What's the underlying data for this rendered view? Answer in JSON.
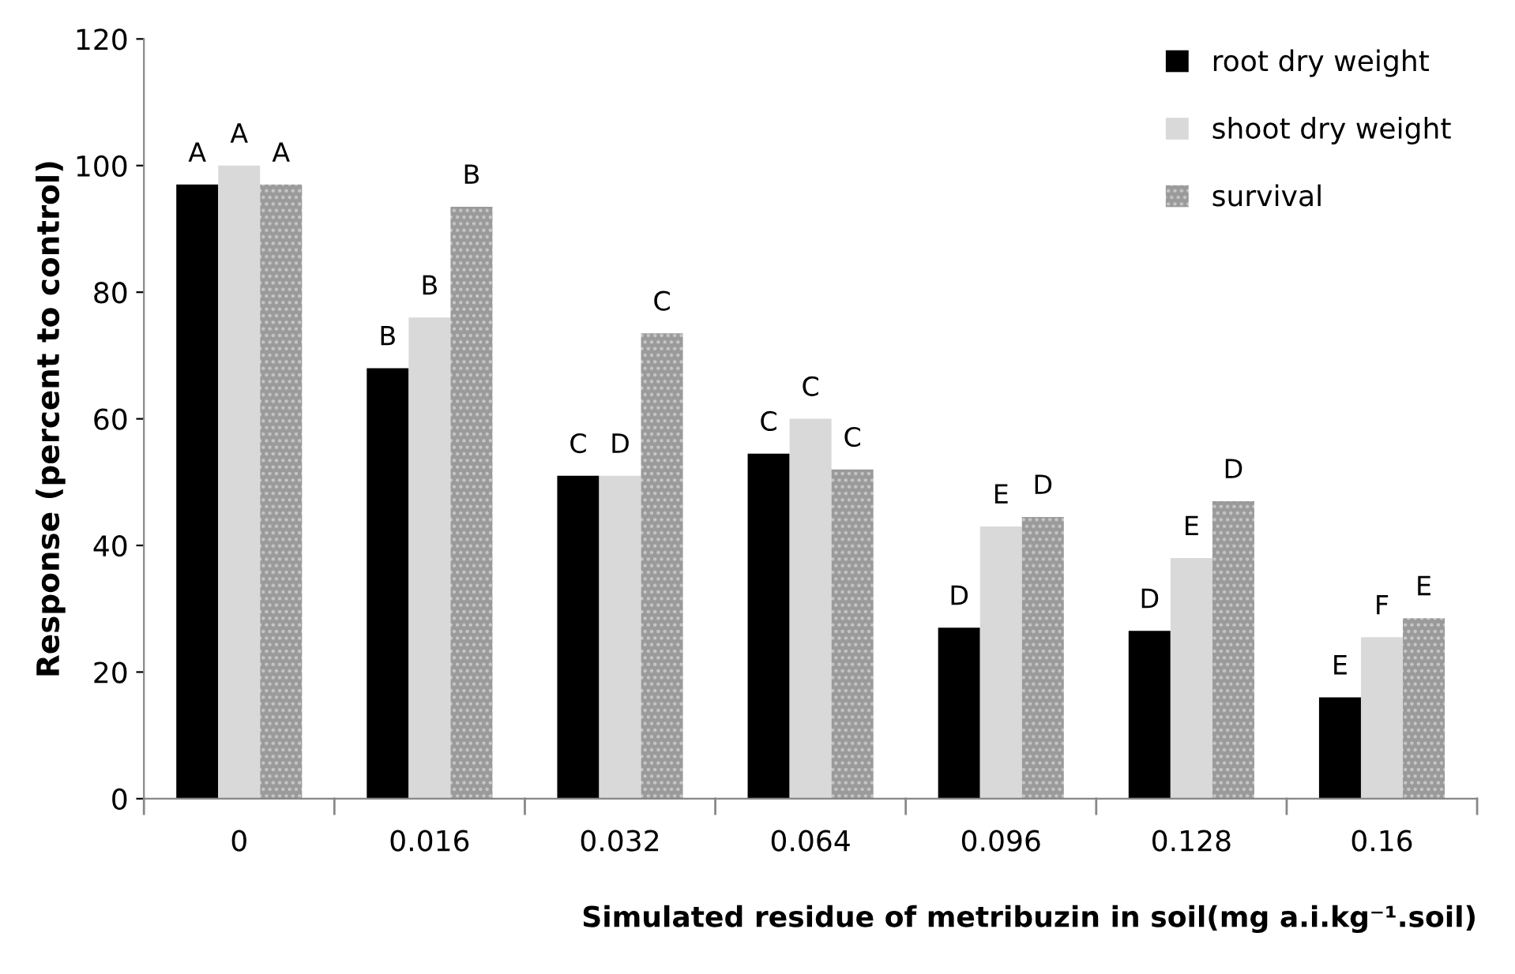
{
  "chart_data": {
    "type": "bar",
    "ylabel": "Response (percent to control)",
    "xlabel": "Simulated residue of metribuzin in soil(mg a.i.kg⁻¹.soil)",
    "categories": [
      "0",
      "0.016",
      "0.032",
      "0.064",
      "0.096",
      "0.128",
      "0.16"
    ],
    "series": [
      {
        "name": "root dry weight",
        "color": "#000000",
        "values": [
          97,
          68,
          51,
          54.5,
          27,
          26.5,
          16
        ],
        "value_labels": [
          "A",
          "B",
          "C",
          "C",
          "D",
          "D",
          "E"
        ]
      },
      {
        "name": "shoot dry weight",
        "color": "#d9d9d9",
        "values": [
          100,
          76,
          51,
          60,
          43,
          38,
          25.5
        ],
        "value_labels": [
          "A",
          "B",
          "D",
          "C",
          "E",
          "E",
          "F"
        ]
      },
      {
        "name": "survival",
        "color": "#9a9a9a",
        "values": [
          97,
          93.5,
          73.5,
          52,
          44.5,
          47,
          28.5
        ],
        "value_labels": [
          "A",
          "B",
          "C",
          "C",
          "D",
          "D",
          "E"
        ]
      }
    ],
    "ylim": [
      0,
      120
    ],
    "yticks": [
      0,
      20,
      40,
      60,
      80,
      100,
      120
    ],
    "grid": false,
    "legend": "top right"
  }
}
